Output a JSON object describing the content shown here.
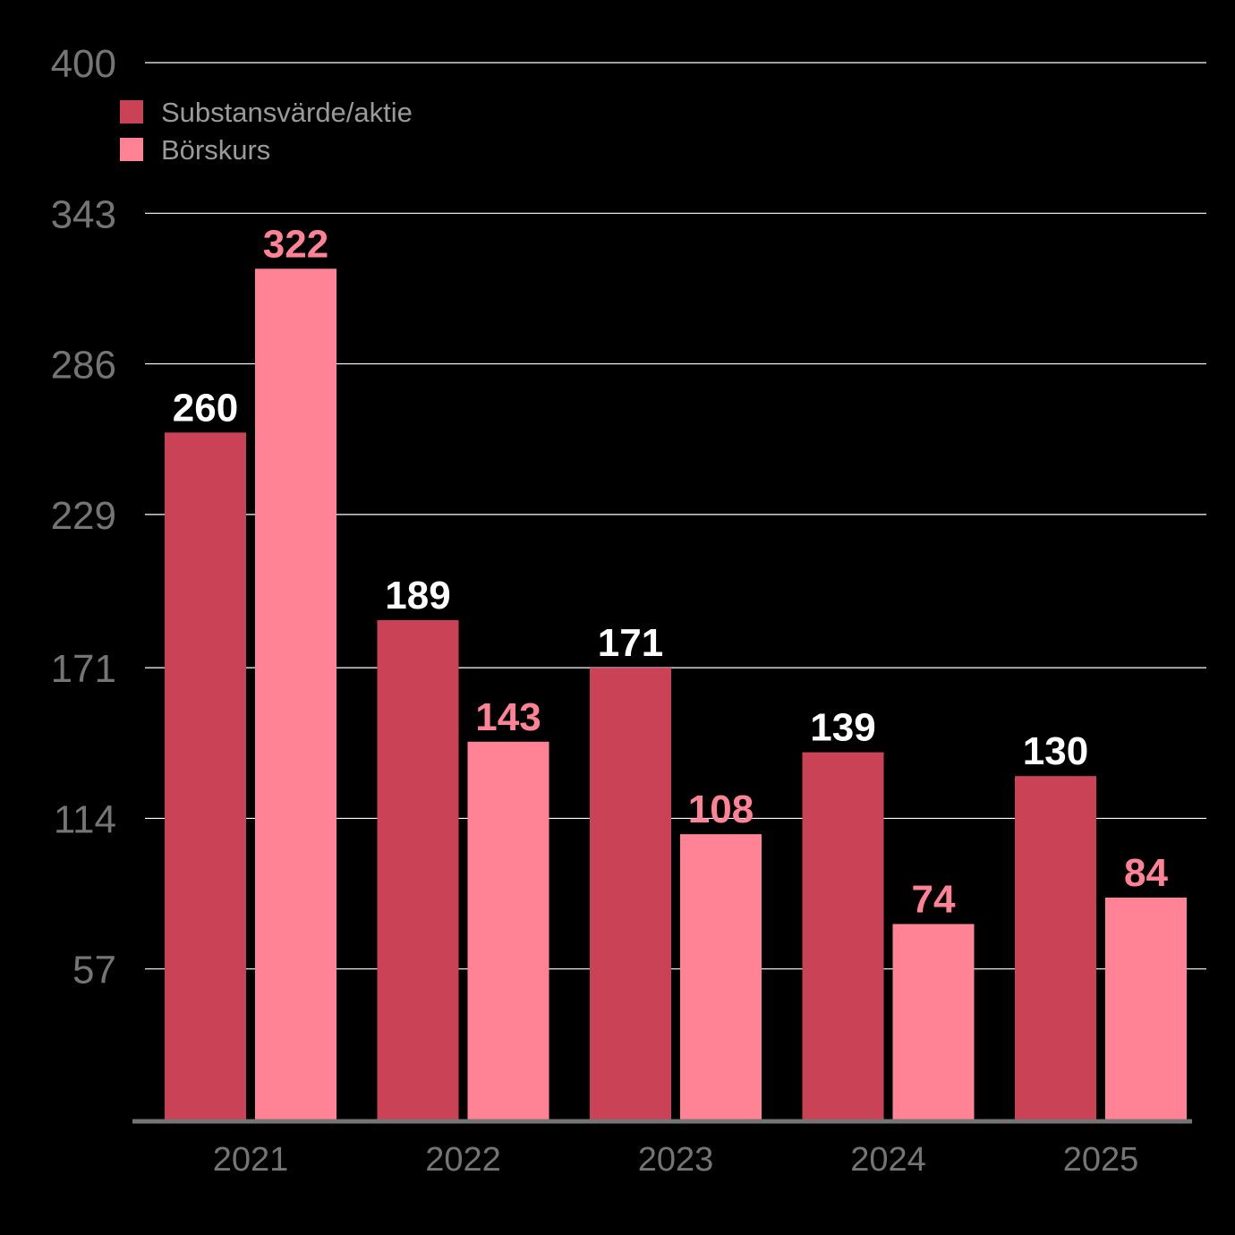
{
  "chart_data": {
    "type": "bar",
    "title": "",
    "xlabel": "",
    "ylabel": "",
    "categories": [
      "2021",
      "2022",
      "2023",
      "2024",
      "2025"
    ],
    "series": [
      {
        "name": "Substansvärde/aktie",
        "values": [
          260,
          189,
          171,
          139,
          130
        ],
        "color": "#c94256",
        "label_color": "#ffffff"
      },
      {
        "name": "Börskurs",
        "values": [
          322,
          143,
          108,
          74,
          84
        ],
        "color": "#ff8394",
        "label_color": "#ff8394"
      }
    ],
    "ylim": [
      0,
      400
    ],
    "yticks": [
      57,
      114,
      171,
      229,
      286,
      343,
      400
    ],
    "ytick_labels": [
      "57",
      "114",
      "171",
      "229",
      "286",
      "343",
      "400"
    ],
    "grid": true,
    "legend_position": "top-left",
    "background": "#000000",
    "gridline_color": "#ffffff",
    "axis_color": "#757575"
  }
}
